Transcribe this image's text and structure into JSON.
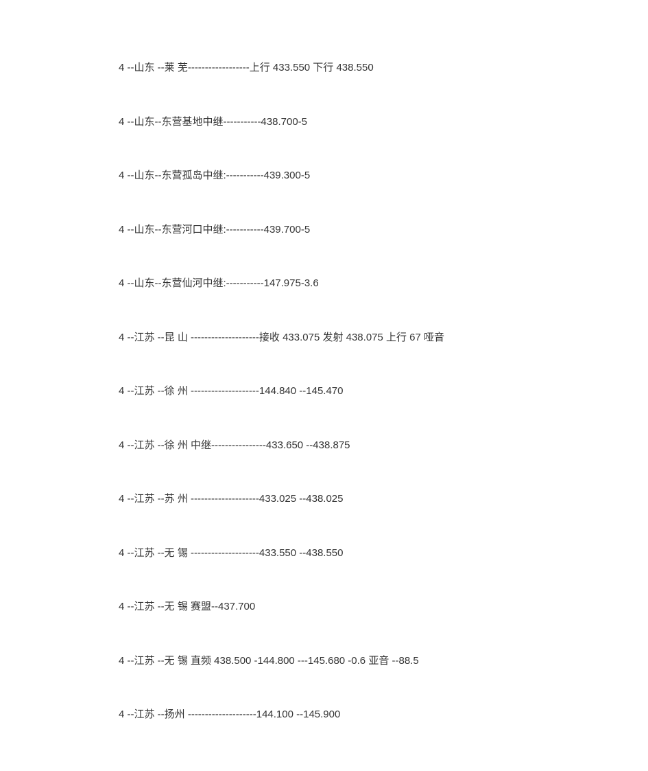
{
  "lines": [
    "4 --山东  --莱  芜------------------上行 433.550  下行 438.550",
    "4 --山东--东营基地中继-----------438.700-5",
    "4 --山东--东营孤岛中继:-----------439.300-5",
    "4 --山东--东营河口中继:-----------439.700-5",
    "4 --山东--东营仙河中继:-----------147.975-3.6",
    "4 --江苏  --昆  山  --------------------接收 433.075 发射 438.075 上行 67 哑音",
    "4 --江苏  --徐  州  --------------------144.840 --145.470",
    "4 --江苏  --徐  州  中继----------------433.650 --438.875",
    "4 --江苏  --苏  州  --------------------433.025 --438.025",
    "4 --江苏  --无  锡  --------------------433.550 --438.550",
    "4 --江苏  --无  锡  赛盟--437.700",
    "4 --江苏  --无  锡  直频 438.500 -144.800 ---145.680 -0.6  亚音  --88.5",
    "4 --江苏  --扬州  --------------------144.100 --145.900"
  ],
  "text_color": "#333333",
  "background_color": "#ffffff",
  "font_size": 15
}
